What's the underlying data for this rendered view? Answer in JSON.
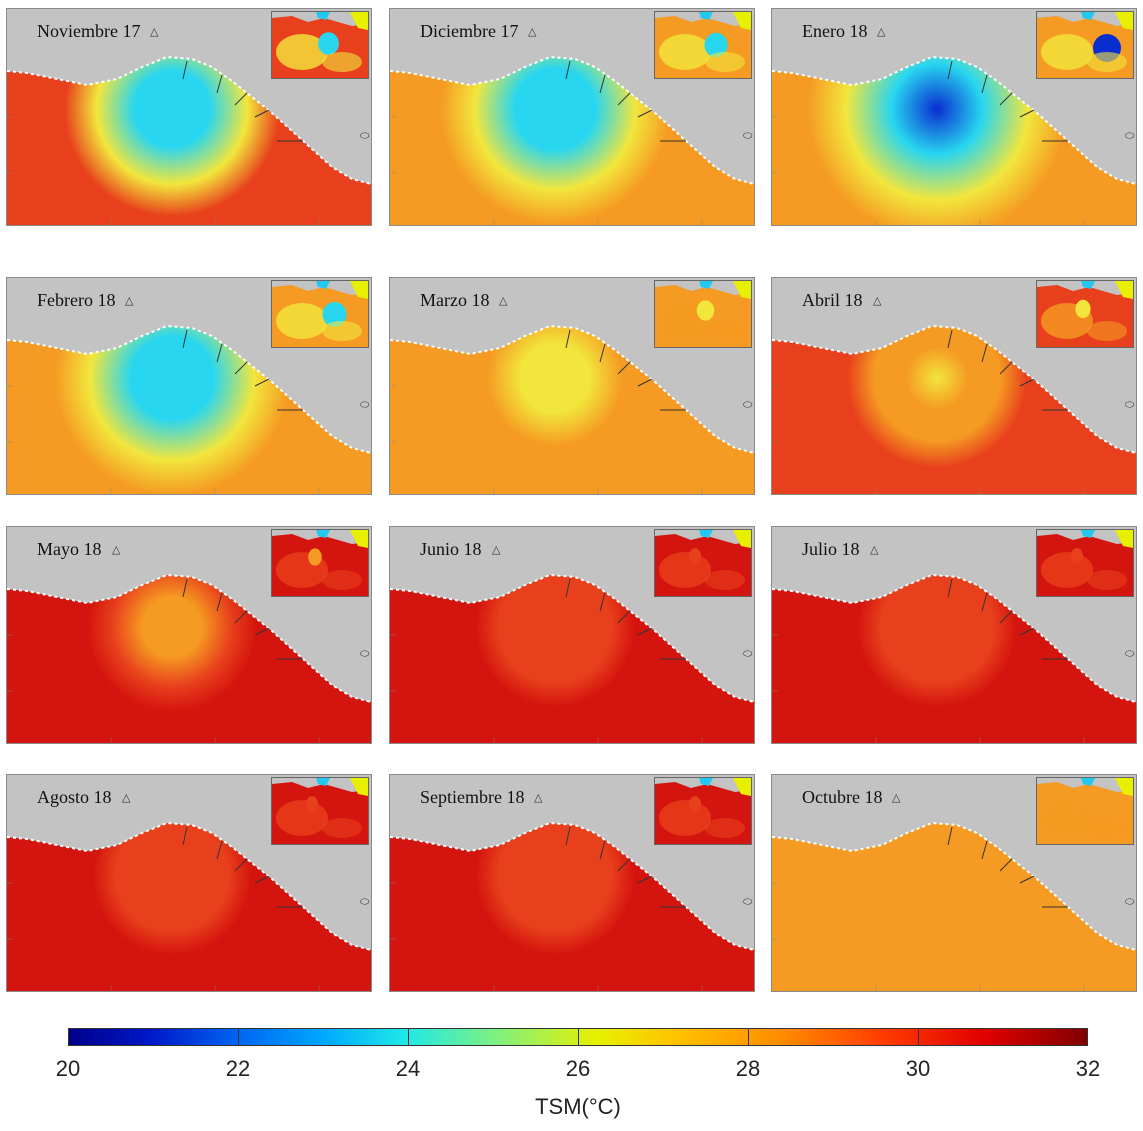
{
  "panels": [
    {
      "label": "Noviembre 17",
      "upwelling": 0.55
    },
    {
      "label": "Diciembre 17",
      "upwelling": 0.7
    },
    {
      "label": "Enero 18",
      "upwelling": 1.0
    },
    {
      "label": "Febrero 18",
      "upwelling": 0.75
    },
    {
      "label": "Marzo 18",
      "upwelling": 0.35
    },
    {
      "label": "Abril 18",
      "upwelling": 0.2
    },
    {
      "label": "Mayo 18",
      "upwelling": 0.1
    },
    {
      "label": "Junio 18",
      "upwelling": 0.0
    },
    {
      "label": "Julio 18",
      "upwelling": 0.0
    },
    {
      "label": "Agosto 18",
      "upwelling": 0.0
    },
    {
      "label": "Septiembre 18",
      "upwelling": 0.0
    },
    {
      "label": "Octubre 18",
      "upwelling": 0.05
    }
  ],
  "colorbar": {
    "title": "TSM(°C)",
    "min": 20,
    "max": 32,
    "ticks": [
      "20",
      "22",
      "24",
      "26",
      "28",
      "30",
      "32"
    ]
  },
  "colors": {
    "land": "#c3c3c3",
    "cold": "#0a2dd0",
    "cool": "#28d6f0",
    "mild": "#f2e63c",
    "warm": "#f59a22",
    "hot": "#e8401c",
    "hottest": "#d4140e"
  }
}
